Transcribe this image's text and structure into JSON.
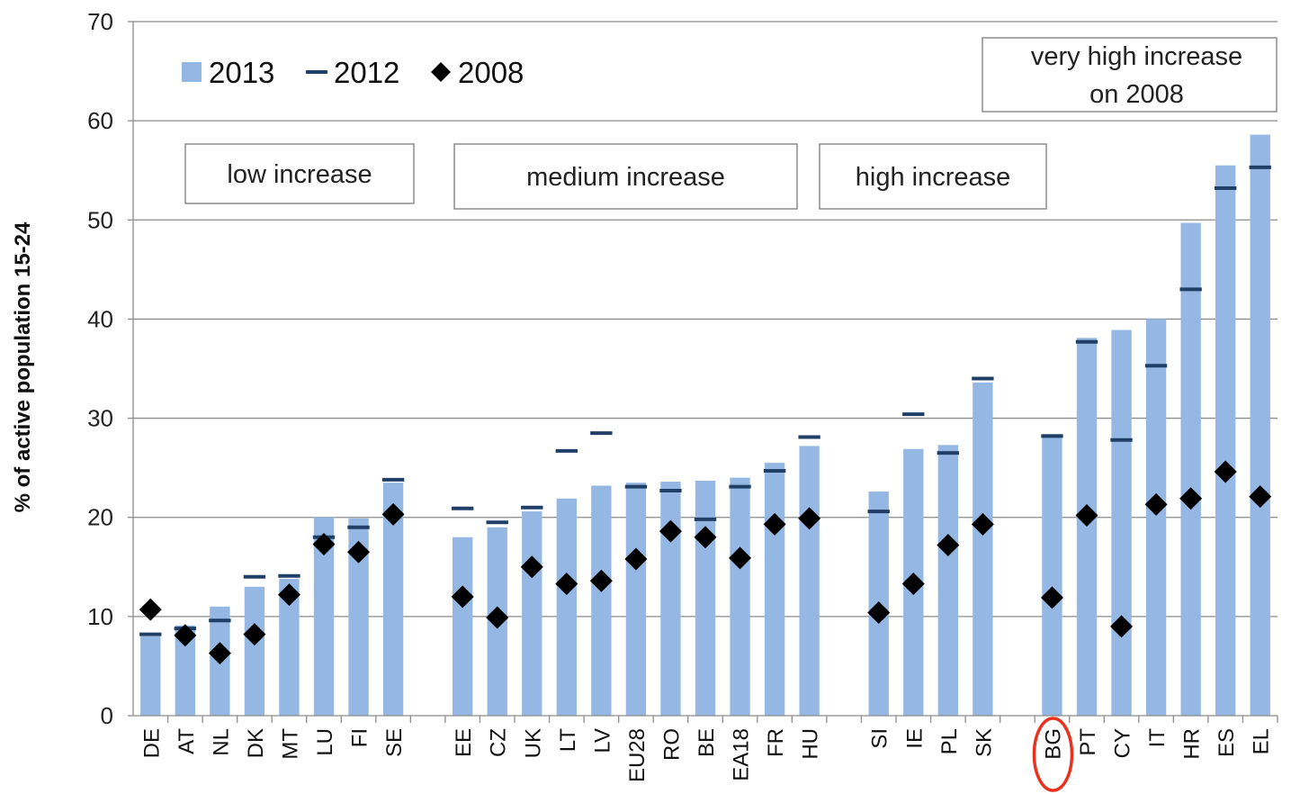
{
  "chart_data": {
    "type": "bar",
    "title": "",
    "xlabel": "",
    "ylabel": "% of active population 15-24",
    "ylim": [
      0,
      70
    ],
    "yticks": [
      0,
      10,
      20,
      30,
      40,
      50,
      60,
      70
    ],
    "grid": true,
    "legend_position": "top-left",
    "series": [
      {
        "name": "2013",
        "kind": "bar",
        "color": "#94b8e3"
      },
      {
        "name": "2012",
        "kind": "dash",
        "color": "#1f3f66"
      },
      {
        "name": "2008",
        "kind": "diamond",
        "color": "#000000"
      }
    ],
    "groups": [
      {
        "label": "low increase",
        "categories": [
          {
            "name": "DE",
            "v2013": 8.0,
            "v2012": 8.2,
            "v2008": 10.7
          },
          {
            "name": "AT",
            "v2013": 9.1,
            "v2012": 8.8,
            "v2008": 8.1
          },
          {
            "name": "NL",
            "v2013": 11.0,
            "v2012": 9.6,
            "v2008": 6.3
          },
          {
            "name": "DK",
            "v2013": 13.0,
            "v2012": 14.0,
            "v2008": 8.2
          },
          {
            "name": "MT",
            "v2013": 13.8,
            "v2012": 14.1,
            "v2008": 12.2
          },
          {
            "name": "LU",
            "v2013": 20.0,
            "v2012": 18.0,
            "v2008": 17.3
          },
          {
            "name": "FI",
            "v2013": 19.9,
            "v2012": 19.0,
            "v2008": 16.5
          },
          {
            "name": "SE",
            "v2013": 23.5,
            "v2012": 23.8,
            "v2008": 20.3
          }
        ]
      },
      {
        "label": "medium increase",
        "categories": [
          {
            "name": "EE",
            "v2013": 18.0,
            "v2012": 20.9,
            "v2008": 12.0
          },
          {
            "name": "CZ",
            "v2013": 19.0,
            "v2012": 19.5,
            "v2008": 9.9
          },
          {
            "name": "UK",
            "v2013": 20.6,
            "v2012": 21.0,
            "v2008": 15.0
          },
          {
            "name": "LT",
            "v2013": 21.9,
            "v2012": 26.7,
            "v2008": 13.3
          },
          {
            "name": "LV",
            "v2013": 23.2,
            "v2012": 28.5,
            "v2008": 13.6
          },
          {
            "name": "EU28",
            "v2013": 23.5,
            "v2012": 23.1,
            "v2008": 15.8
          },
          {
            "name": "RO",
            "v2013": 23.6,
            "v2012": 22.7,
            "v2008": 18.6
          },
          {
            "name": "BE",
            "v2013": 23.7,
            "v2012": 19.8,
            "v2008": 18.0
          },
          {
            "name": "EA18",
            "v2013": 24.0,
            "v2012": 23.1,
            "v2008": 15.9
          },
          {
            "name": "FR",
            "v2013": 25.5,
            "v2012": 24.7,
            "v2008": 19.3
          },
          {
            "name": "HU",
            "v2013": 27.2,
            "v2012": 28.1,
            "v2008": 19.9
          }
        ]
      },
      {
        "label": "high increase",
        "categories": [
          {
            "name": "SI",
            "v2013": 22.6,
            "v2012": 20.6,
            "v2008": 10.4
          },
          {
            "name": "IE",
            "v2013": 26.9,
            "v2012": 30.4,
            "v2008": 13.3
          },
          {
            "name": "PL",
            "v2013": 27.3,
            "v2012": 26.5,
            "v2008": 17.2
          },
          {
            "name": "SK",
            "v2013": 33.6,
            "v2012": 34.0,
            "v2008": 19.3
          }
        ]
      },
      {
        "label": "very high increase on 2008",
        "categories": [
          {
            "name": "BG",
            "v2013": 28.4,
            "v2012": 28.2,
            "v2008": 11.9,
            "highlight": true
          },
          {
            "name": "PT",
            "v2013": 38.1,
            "v2012": 37.7,
            "v2008": 20.2
          },
          {
            "name": "CY",
            "v2013": 38.9,
            "v2012": 27.8,
            "v2008": 9.0
          },
          {
            "name": "IT",
            "v2013": 40.0,
            "v2012": 35.3,
            "v2008": 21.3
          },
          {
            "name": "HR",
            "v2013": 49.7,
            "v2012": 43.0,
            "v2008": 21.9
          },
          {
            "name": "ES",
            "v2013": 55.5,
            "v2012": 53.2,
            "v2008": 24.6
          },
          {
            "name": "EL",
            "v2013": 58.6,
            "v2012": 55.3,
            "v2008": 22.1
          }
        ]
      }
    ]
  }
}
